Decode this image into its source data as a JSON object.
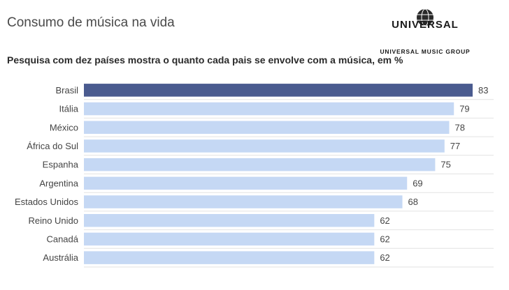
{
  "header": {
    "title": "Consumo de música na vida",
    "subtitle": "Pesquisa com dez países mostra o quanto cada pais se envolve com a música, em %"
  },
  "logo": {
    "wordmark": "UNIVERSAL",
    "tagline": "UNIVERSAL MUSIC GROUP",
    "icon": "globe-icon"
  },
  "chart_data": {
    "type": "bar",
    "orientation": "horizontal",
    "categories": [
      "Brasil",
      "Itália",
      "México",
      "África do Sul",
      "Espanha",
      "Argentina",
      "Estados Unidos",
      "Reino Unido",
      "Canadá",
      "Austrália"
    ],
    "values": [
      83,
      79,
      78,
      77,
      75,
      69,
      68,
      62,
      62,
      62
    ],
    "title": "Consumo de música na vida",
    "subtitle": "Pesquisa com dez países mostra o quanto cada pais se envolve com a música, em %",
    "xlim": [
      0,
      83
    ],
    "grid": false,
    "colors": {
      "highlight": "#4a5b8f",
      "default": "#c5d8f4"
    },
    "highlight_index": 0
  }
}
